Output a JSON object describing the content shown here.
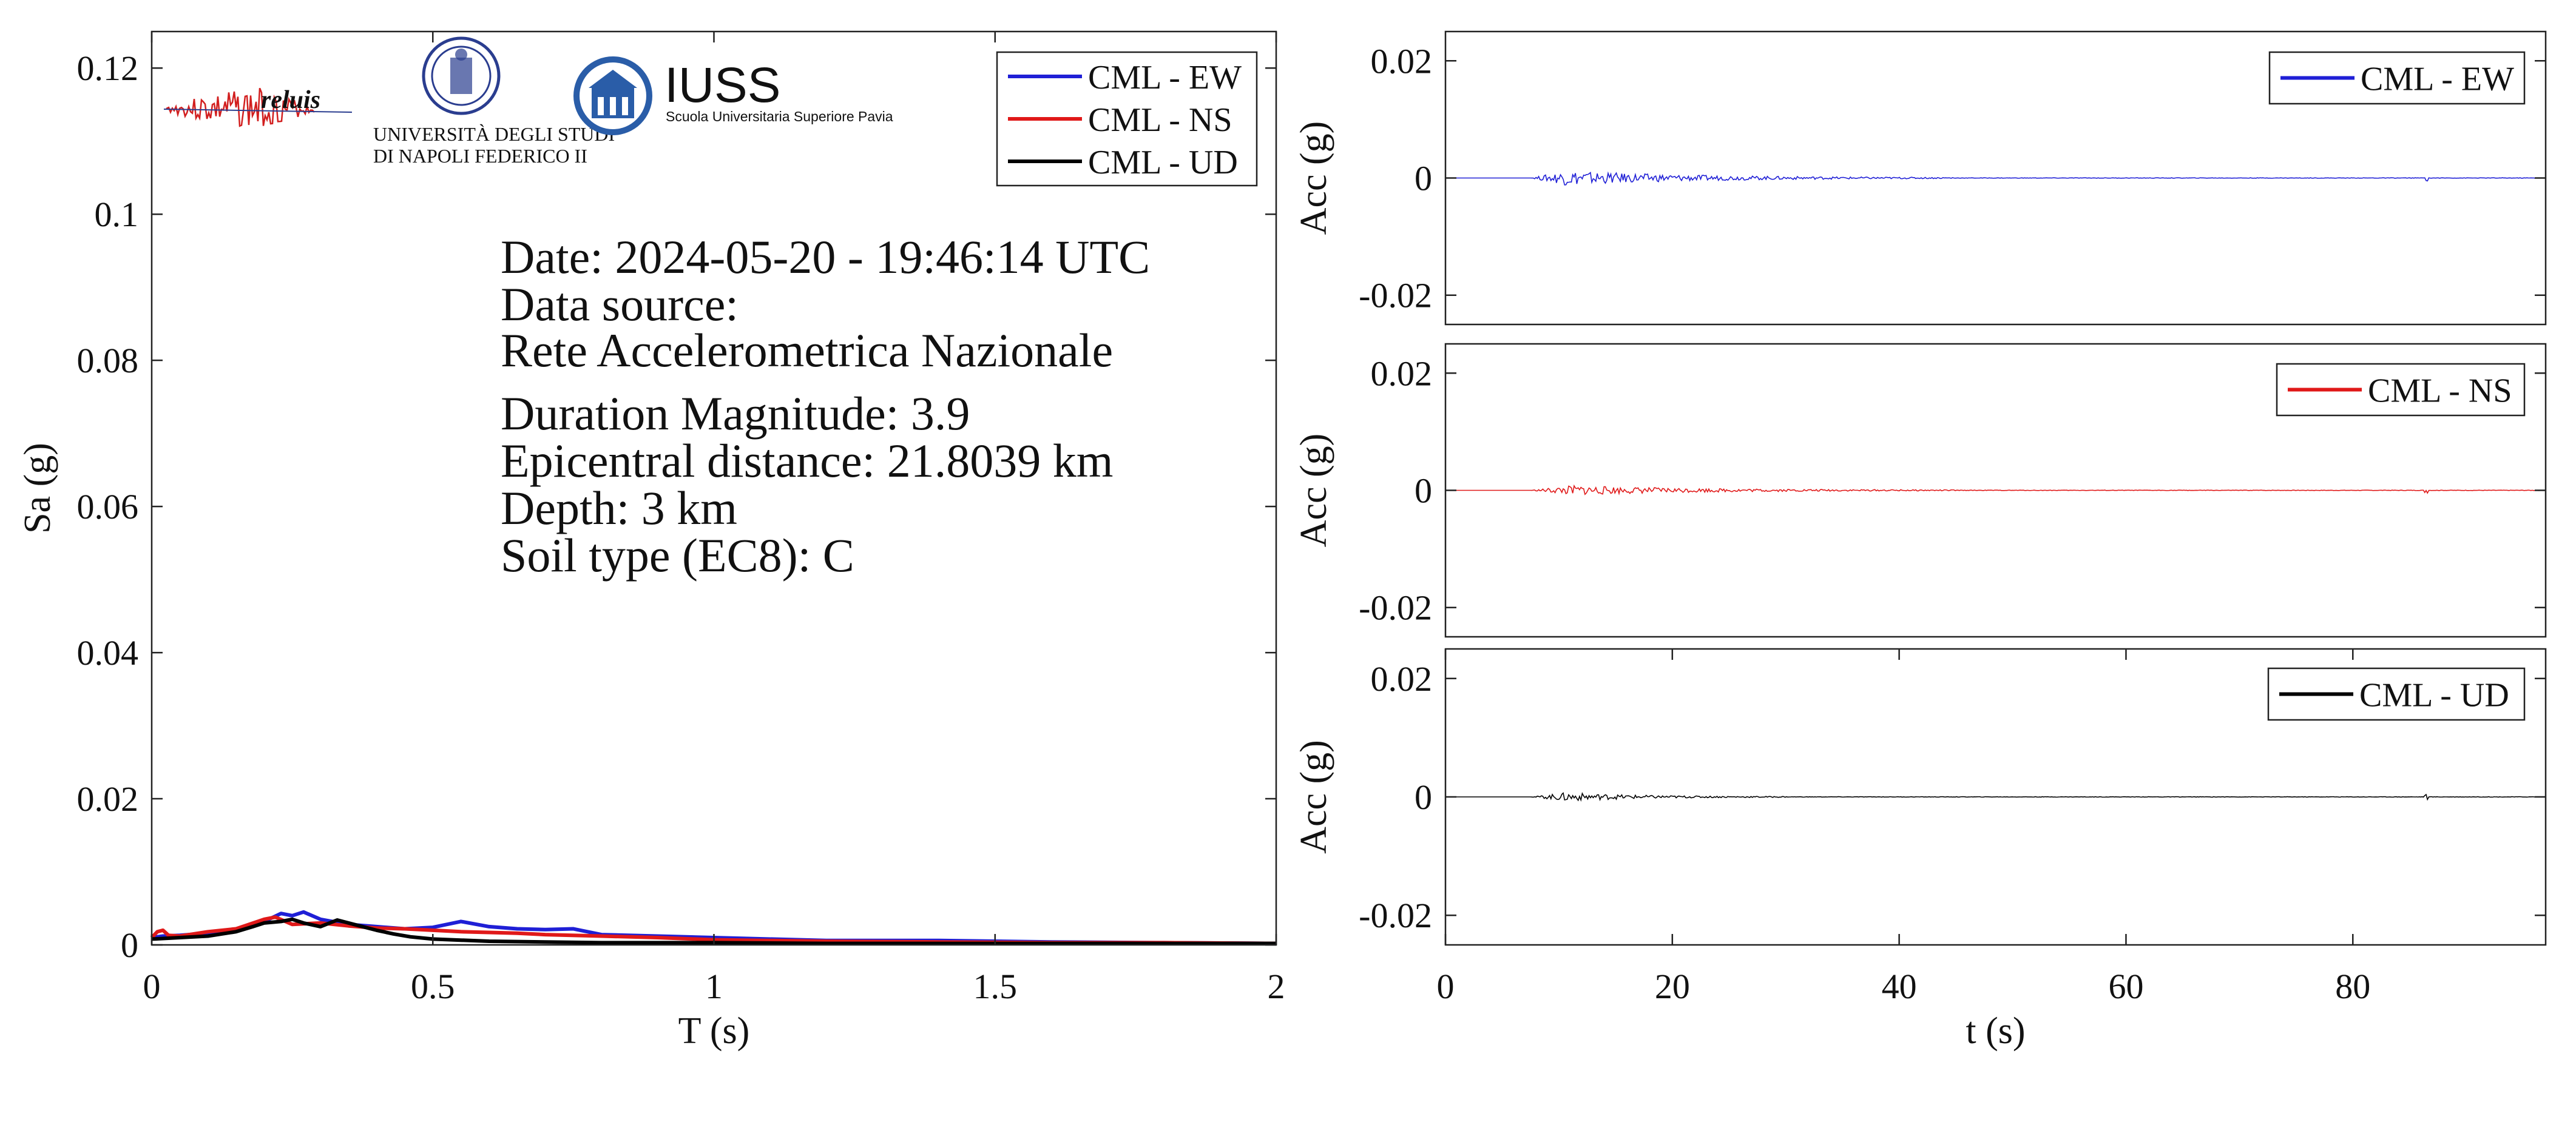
{
  "info": {
    "lines": [
      "Date: 2024-05-20 - 19:46:14 UTC",
      "Data source:",
      "Rete Accelerometrica Nazionale",
      "Duration Magnitude: 3.9",
      "Epicentral distance: 21.8039 km",
      "Depth: 3 km",
      "Soil type (EC8): C"
    ]
  },
  "logos": {
    "reluis": "reluis",
    "unina_line1": "UNIVERSITÀ DEGLI STUDI",
    "unina_line2": "DI NAPOLI FEDERICO II",
    "iuss": "IUSS",
    "iuss_sub": "Scuola Universitaria Superiore Pavia"
  },
  "colors": {
    "EW": "#1f1fd6",
    "NS": "#e01919",
    "UD": "#000000"
  },
  "chart_data": [
    {
      "type": "line",
      "xlabel": "T (s)",
      "ylabel": "Sa (g)",
      "xlim": [
        0,
        2
      ],
      "ylim": [
        0,
        0.125
      ],
      "xticks": [
        0,
        0.5,
        1,
        1.5,
        2
      ],
      "xtick_labels": [
        "0",
        "0.5",
        "1",
        "1.5",
        "2"
      ],
      "yticks": [
        0,
        0.02,
        0.04,
        0.06,
        0.08,
        0.1,
        0.12
      ],
      "ytick_labels": [
        "0",
        "0.02",
        "0.04",
        "0.06",
        "0.08",
        "0.1",
        "0.12"
      ],
      "legend_position": "top-right",
      "series": [
        {
          "name": "CML - EW",
          "color": "#1f1fd6",
          "x": [
            0,
            0.02,
            0.05,
            0.1,
            0.15,
            0.2,
            0.23,
            0.25,
            0.27,
            0.3,
            0.35,
            0.4,
            0.45,
            0.5,
            0.55,
            0.6,
            0.65,
            0.7,
            0.75,
            0.8,
            0.9,
            1.0,
            1.2,
            1.4,
            1.6,
            1.8,
            2.0
          ],
          "y": [
            0.001,
            0.0012,
            0.0013,
            0.0016,
            0.002,
            0.0032,
            0.0043,
            0.004,
            0.0045,
            0.0035,
            0.0028,
            0.0025,
            0.0022,
            0.0024,
            0.0032,
            0.0025,
            0.0022,
            0.0021,
            0.0022,
            0.0014,
            0.0012,
            0.001,
            0.0006,
            0.0006,
            0.0004,
            0.0003,
            0.0002
          ]
        },
        {
          "name": "CML - NS",
          "color": "#e01919",
          "x": [
            0,
            0.01,
            0.02,
            0.03,
            0.05,
            0.1,
            0.15,
            0.2,
            0.22,
            0.25,
            0.3,
            0.35,
            0.4,
            0.45,
            0.5,
            0.55,
            0.6,
            0.65,
            0.7,
            0.8,
            0.9,
            1.0,
            1.2,
            1.4,
            1.6,
            1.8,
            2.0
          ],
          "y": [
            0.001,
            0.0018,
            0.002,
            0.0013,
            0.0012,
            0.0018,
            0.0022,
            0.0035,
            0.0038,
            0.0028,
            0.003,
            0.0026,
            0.0023,
            0.0022,
            0.002,
            0.0018,
            0.0017,
            0.0016,
            0.0014,
            0.0012,
            0.001,
            0.0007,
            0.0005,
            0.0004,
            0.0003,
            0.0003,
            0.0002
          ]
        },
        {
          "name": "CML - UD",
          "color": "#000000",
          "x": [
            0,
            0.05,
            0.1,
            0.15,
            0.18,
            0.2,
            0.23,
            0.25,
            0.27,
            0.3,
            0.33,
            0.36,
            0.4,
            0.43,
            0.46,
            0.5,
            0.6,
            0.7,
            0.8,
            1.0,
            1.2,
            1.4,
            1.6,
            1.8,
            2.0
          ],
          "y": [
            0.0008,
            0.001,
            0.0012,
            0.0018,
            0.0025,
            0.003,
            0.0032,
            0.0035,
            0.003,
            0.0025,
            0.0034,
            0.0028,
            0.002,
            0.0015,
            0.0011,
            0.0008,
            0.0005,
            0.0004,
            0.0003,
            0.0003,
            0.0002,
            0.0002,
            0.0002,
            0.0002,
            0.0002
          ]
        }
      ]
    },
    {
      "type": "line",
      "xlabel": "",
      "ylabel": "Acc (g)",
      "xlim": [
        0,
        97
      ],
      "ylim": [
        -0.025,
        0.025
      ],
      "yticks": [
        -0.02,
        0,
        0.02
      ],
      "ytick_labels": [
        "-0.02",
        "0",
        "0.02"
      ],
      "legend_position": "top-right",
      "series": [
        {
          "name": "CML - EW",
          "color": "#1f1fd6",
          "envelope": {
            "start": 7.5,
            "peak_at": 10.5,
            "peak": 0.0012,
            "decay_end": 45,
            "end": 97,
            "spike_at": 86.5
          }
        }
      ]
    },
    {
      "type": "line",
      "xlabel": "",
      "ylabel": "Acc (g)",
      "xlim": [
        0,
        97
      ],
      "ylim": [
        -0.025,
        0.025
      ],
      "yticks": [
        -0.02,
        0,
        0.02
      ],
      "ytick_labels": [
        "-0.02",
        "0",
        "0.02"
      ],
      "legend_position": "top-right",
      "series": [
        {
          "name": "CML - NS",
          "color": "#e01919",
          "envelope": {
            "start": 7.5,
            "peak_at": 11,
            "peak": 0.0008,
            "decay_end": 45,
            "end": 97,
            "spike_at": 86.5
          }
        }
      ]
    },
    {
      "type": "line",
      "xlabel": "t (s)",
      "ylabel": "Acc (g)",
      "xlim": [
        0,
        97
      ],
      "ylim": [
        -0.025,
        0.025
      ],
      "xticks": [
        0,
        20,
        40,
        60,
        80
      ],
      "xtick_labels": [
        "0",
        "20",
        "40",
        "60",
        "80"
      ],
      "yticks": [
        -0.02,
        0,
        0.02
      ],
      "ytick_labels": [
        "-0.02",
        "0",
        "0.02"
      ],
      "legend_position": "top-right",
      "series": [
        {
          "name": "CML - UD",
          "color": "#000000",
          "envelope": {
            "start": 7.5,
            "peak_at": 10.5,
            "peak": 0.0007,
            "decay_end": 30,
            "end": 97,
            "spike_at": 86.5
          }
        }
      ]
    }
  ]
}
